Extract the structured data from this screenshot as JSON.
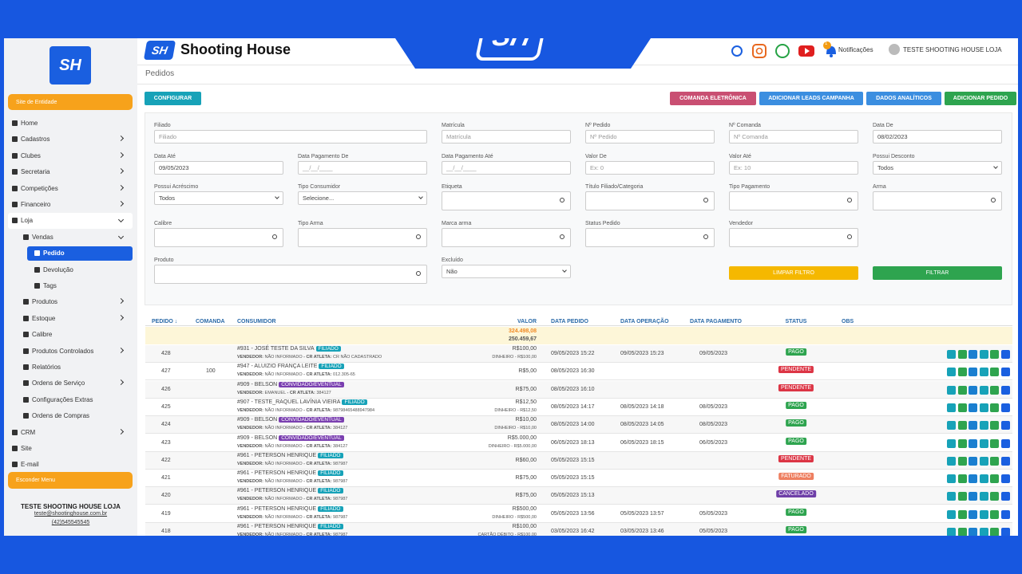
{
  "brand": {
    "logo": "SH",
    "name": "Shooting House"
  },
  "header": {
    "notif_count": "1",
    "notifications": "Notificações",
    "user": "TESTE SHOOTING HOUSE LOJA"
  },
  "sidebar": {
    "site_button": "Site de Entidade",
    "menu": [
      {
        "label": "Home",
        "level": 0
      },
      {
        "label": "Cadastros",
        "level": 0,
        "arrow": true
      },
      {
        "label": "Clubes",
        "level": 0,
        "arrow": true
      },
      {
        "label": "Secretaria",
        "level": 0,
        "arrow": true
      },
      {
        "label": "Competições",
        "level": 0,
        "arrow": true
      },
      {
        "label": "Financeiro",
        "level": 0,
        "arrow": true
      },
      {
        "label": "Loja",
        "level": 0,
        "arrow": true,
        "open": true
      },
      {
        "label": "Vendas",
        "level": 1,
        "arrow": true,
        "open": true
      },
      {
        "label": "Pedido",
        "level": 2,
        "active": true
      },
      {
        "label": "Devolução",
        "level": 2
      },
      {
        "label": "Tags",
        "level": 2
      },
      {
        "label": "Produtos",
        "level": 1,
        "arrow": true
      },
      {
        "label": "Estoque",
        "level": 1,
        "arrow": true
      },
      {
        "label": "Calibre",
        "level": 1
      },
      {
        "label": "Produtos Controlados",
        "level": 1,
        "arrow": true
      },
      {
        "label": "Relatórios",
        "level": 1
      },
      {
        "label": "Ordens de Serviço",
        "level": 1,
        "arrow": true
      },
      {
        "label": "Configurações Extras",
        "level": 1
      },
      {
        "label": "Ordens de Compras",
        "level": 1
      },
      {
        "label": "CRM",
        "level": 0,
        "arrow": true
      },
      {
        "label": "Site",
        "level": 0
      },
      {
        "label": "E-mail",
        "level": 0
      }
    ],
    "hide_button": "Esconder Menu",
    "user": {
      "name": "TESTE SHOOTING HOUSE LOJA",
      "email": "teste@shootinghouse.com.br",
      "phone": "(42)545545545"
    }
  },
  "page": {
    "title": "Pedidos",
    "config_button": "CONFIGURAR",
    "buttons": [
      {
        "text": "COMANDA ELETRÔNICA",
        "color": "#c94f72"
      },
      {
        "text": "ADICIONAR LEADS CAMPANHA",
        "color": "#3b8ee0"
      },
      {
        "text": "DADOS ANALÍTICOS",
        "color": "#3b8ee0"
      },
      {
        "text": "ADICIONAR PEDIDO",
        "color": "#2ea44f"
      }
    ]
  },
  "filters": [
    {
      "label": "Filiado",
      "text": "Filiado",
      "kind": "input"
    },
    {
      "label": "Matrícula",
      "text": "Matrícula",
      "kind": "input"
    },
    {
      "label": "Nº Pedido",
      "text": "Nº Pedido",
      "kind": "input"
    },
    {
      "label": "Nº Comanda",
      "text": "Nº Comanda",
      "kind": "input"
    },
    {
      "label": "Data De",
      "text": "08/02/2023",
      "kind": "value"
    },
    {
      "label": "Data Até",
      "text": "09/05/2023",
      "kind": "value"
    },
    {
      "label": "Data Pagamento De",
      "text": "__/__/____",
      "kind": "input"
    },
    {
      "label": "Data Pagamento Até",
      "text": "__/__/____",
      "kind": "input"
    },
    {
      "label": "Valor De",
      "text": "Ex: 0",
      "kind": "input"
    },
    {
      "label": "Valor Até",
      "text": "Ex: 10",
      "kind": "input"
    },
    {
      "label": "Possui Desconto",
      "text": "Todos",
      "kind": "select"
    },
    {
      "label": "Possui Acréscimo",
      "text": "Todos",
      "kind": "select"
    },
    {
      "label": "Tipo Consumidor",
      "text": "Selecione...",
      "kind": "select"
    },
    {
      "label": "Etiqueta",
      "kind": "search"
    },
    {
      "label": "Título Filiado/Categoria",
      "kind": "search"
    },
    {
      "label": "Tipo Pagamento",
      "kind": "search"
    },
    {
      "label": "Arma",
      "kind": "search"
    },
    {
      "label": "Calibre",
      "kind": "search"
    },
    {
      "label": "Tipo Arma",
      "kind": "search"
    },
    {
      "label": "Marca arma",
      "kind": "search"
    },
    {
      "label": "Status Pedido",
      "kind": "search"
    },
    {
      "label": "Vendedor",
      "kind": "search"
    },
    {
      "label": "Produto",
      "kind": "search"
    },
    {
      "label": "Excluído",
      "text": "Não",
      "kind": "select"
    }
  ],
  "filter_buttons": [
    {
      "text": "LIMPAR FILTRO",
      "color": "#f5b800"
    },
    {
      "text": "FILTRAR",
      "color": "#2ea44f"
    }
  ],
  "table": {
    "headers": [
      "PEDIDO ↓",
      "COMANDA",
      "CONSUMIDOR",
      "VALOR",
      "DATA PEDIDO",
      "DATA OPERAÇÃO",
      "DATA PAGAMENTO",
      "STATUS",
      "OBS"
    ],
    "totals": [
      "324.498,08",
      "250.459,67"
    ],
    "vendor_label": "VENDEDOR:",
    "cr_label": "- CR ATLETA:",
    "rows": [
      {
        "pedido": 428,
        "comanda": null,
        "consumidor": "#931 - JOSÉ TESTE DA SILVA",
        "tag": "FILIADO",
        "tag_color": "#17a2b8",
        "vendedor": "NÃO INFORMADO",
        "cr": "CR NÃO CADASTRADO",
        "valor": "R$100,00",
        "pagamento": "DINHEIRO - R$100,00",
        "data_pedido": "09/05/2023 15:22",
        "data_operacao": "09/05/2023 15:23",
        "data_pagamento": "09/05/2023",
        "status": "PAGO",
        "status_color": "#2ea44f"
      },
      {
        "pedido": 427,
        "comanda": 100,
        "consumidor": "#947 - ALUIZIO FRANÇA LEITE",
        "tag": "FILIADO",
        "tag_color": "#17a2b8",
        "vendedor": "NÃO INFORMADO",
        "cr": "012.305-65",
        "valor": "R$5,00",
        "pagamento": null,
        "data_pedido": "08/05/2023 16:30",
        "data_operacao": null,
        "data_pagamento": null,
        "status": "PENDENTE",
        "status_color": "#dc3545"
      },
      {
        "pedido": 426,
        "comanda": null,
        "consumidor": "#909 - BELSON",
        "tag": "CONVIDADO/EVENTUAL",
        "tag_color": "#7a3fb0",
        "vendedor": "EMANUEL",
        "cr": "384127",
        "valor": "R$75,00",
        "pagamento": null,
        "data_pedido": "08/05/2023 16:10",
        "data_operacao": null,
        "data_pagamento": null,
        "status": "PENDENTE",
        "status_color": "#dc3545"
      },
      {
        "pedido": 425,
        "comanda": null,
        "consumidor": "#907 - TESTE_RAQUEL LAVÍNIA VIEIRA",
        "tag": "FILIADO",
        "tag_color": "#17a2b8",
        "vendedor": "NÃO INFORMADO",
        "cr": "98798465488947984",
        "valor": "R$12,50",
        "pagamento": "DINHEIRO - R$12,50",
        "data_pedido": "08/05/2023 14:17",
        "data_operacao": "08/05/2023 14:18",
        "data_pagamento": "08/05/2023",
        "status": "PAGO",
        "status_color": "#2ea44f"
      },
      {
        "pedido": 424,
        "comanda": null,
        "consumidor": "#909 - BELSON",
        "tag": "CONVIDADO/EVENTUAL",
        "tag_color": "#7a3fb0",
        "vendedor": "NÃO INFORMADO",
        "cr": "384127",
        "valor": "R$10,00",
        "pagamento": "DINHEIRO - R$10,00",
        "data_pedido": "08/05/2023 14:00",
        "data_operacao": "08/05/2023 14:05",
        "data_pagamento": "08/05/2023",
        "status": "PAGO",
        "status_color": "#2ea44f"
      },
      {
        "pedido": 423,
        "comanda": null,
        "consumidor": "#909 - BELSON",
        "tag": "CONVIDADO/EVENTUAL",
        "tag_color": "#7a3fb0",
        "vendedor": "NÃO INFORMADO",
        "cr": "384127",
        "valor": "R$5.000,00",
        "pagamento": "DINHEIRO - R$5.000,00",
        "data_pedido": "06/05/2023 18:13",
        "data_operacao": "06/05/2023 18:15",
        "data_pagamento": "06/05/2023",
        "status": "PAGO",
        "status_color": "#2ea44f"
      },
      {
        "pedido": 422,
        "comanda": null,
        "consumidor": "#961 - PETERSON HENRIQUE",
        "tag": "FILIADO",
        "tag_color": "#17a2b8",
        "vendedor": "NÃO INFORMADO",
        "cr": "987987",
        "valor": "R$60,00",
        "pagamento": null,
        "data_pedido": "05/05/2023 15:15",
        "data_operacao": null,
        "data_pagamento": null,
        "status": "PENDENTE",
        "status_color": "#dc3545"
      },
      {
        "pedido": 421,
        "comanda": null,
        "consumidor": "#961 - PETERSON HENRIQUE",
        "tag": "FILIADO",
        "tag_color": "#17a2b8",
        "vendedor": "NÃO INFORMADO",
        "cr": "987987",
        "valor": "R$75,00",
        "pagamento": null,
        "data_pedido": "05/05/2023 15:15",
        "data_operacao": null,
        "data_pagamento": null,
        "status": "FATURADO",
        "status_color": "#ee7f60"
      },
      {
        "pedido": 420,
        "comanda": null,
        "consumidor": "#961 - PETERSON HENRIQUE",
        "tag": "FILIADO",
        "tag_color": "#17a2b8",
        "vendedor": "NÃO INFORMADO",
        "cr": "987987",
        "valor": "R$75,00",
        "pagamento": null,
        "data_pedido": "05/05/2023 15:13",
        "data_operacao": null,
        "data_pagamento": null,
        "status": "CANCELADO",
        "status_color": "#6f3fa8"
      },
      {
        "pedido": 419,
        "comanda": null,
        "consumidor": "#961 - PETERSON HENRIQUE",
        "tag": "FILIADO",
        "tag_color": "#17a2b8",
        "vendedor": "NÃO INFORMADO",
        "cr": "987987",
        "valor": "R$500,00",
        "pagamento": "DINHEIRO - R$500,00",
        "data_pedido": "05/05/2023 13:56",
        "data_operacao": "05/05/2023 13:57",
        "data_pagamento": "05/05/2023",
        "status": "PAGO",
        "status_color": "#2ea44f"
      },
      {
        "pedido": 418,
        "comanda": null,
        "consumidor": "#961 - PETERSON HENRIQUE",
        "tag": "FILIADO",
        "tag_color": "#17a2b8",
        "vendedor": "NÃO INFORMADO",
        "cr": "987987",
        "valor": "R$100,00",
        "pagamento": "CARTÃO DÉBITO - R$100,00",
        "data_pedido": "03/05/2023 16:42",
        "data_operacao": "03/05/2023 13:46",
        "data_pagamento": "05/05/2023",
        "status": "PAGO",
        "status_color": "#2ea44f"
      }
    ]
  }
}
